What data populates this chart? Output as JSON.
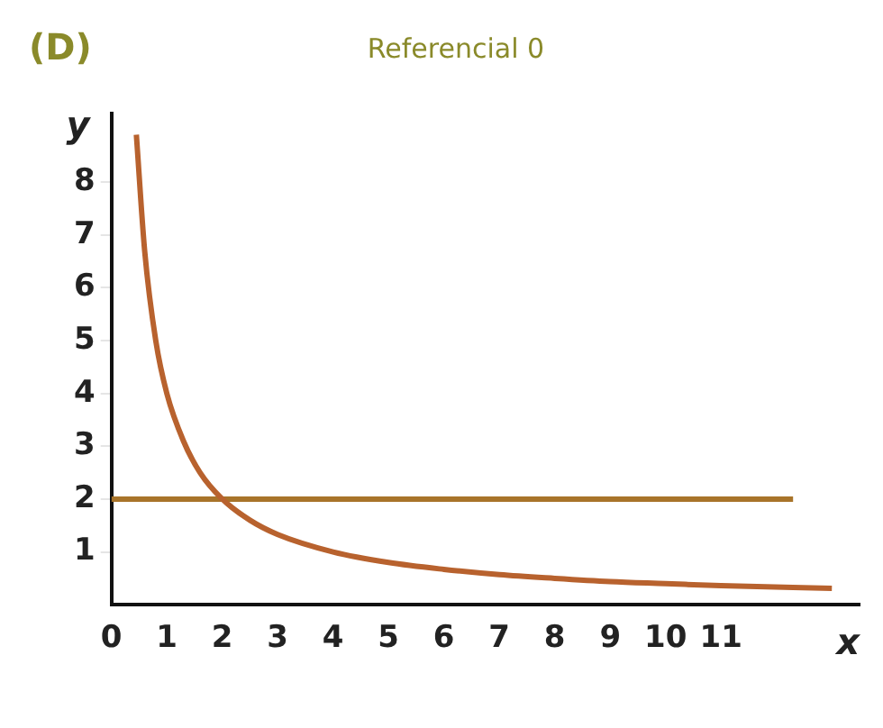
{
  "chart_data": {
    "type": "line",
    "title": "Referencial 0",
    "xlabel": "x",
    "ylabel": "y",
    "annotations": [
      "(D)"
    ],
    "xlim": [
      0,
      13.5
    ],
    "ylim": [
      0,
      9.3
    ],
    "xticks": [
      0,
      1,
      2,
      3,
      4,
      5,
      6,
      7,
      8,
      9,
      10,
      11
    ],
    "yticks": [
      1,
      2,
      3,
      4,
      5,
      6,
      7,
      8
    ],
    "grid": false,
    "legend": false,
    "marker": "none",
    "line_style": "solid",
    "series": [
      {
        "color": "#b8622e",
        "x": [
          0.45,
          0.6,
          0.8,
          1,
          1.3,
          1.6,
          2,
          2.5,
          3,
          4,
          5,
          6,
          7,
          8,
          9,
          10,
          11,
          13
        ],
        "values": [
          8.9,
          6.7,
          5,
          4,
          3.1,
          2.5,
          2,
          1.6,
          1.33,
          1,
          0.8,
          0.67,
          0.57,
          0.5,
          0.44,
          0.4,
          0.36,
          0.31
        ]
      },
      {
        "color": "#a8742a",
        "x": [
          0,
          12.3
        ],
        "values": [
          2,
          2
        ]
      }
    ]
  }
}
